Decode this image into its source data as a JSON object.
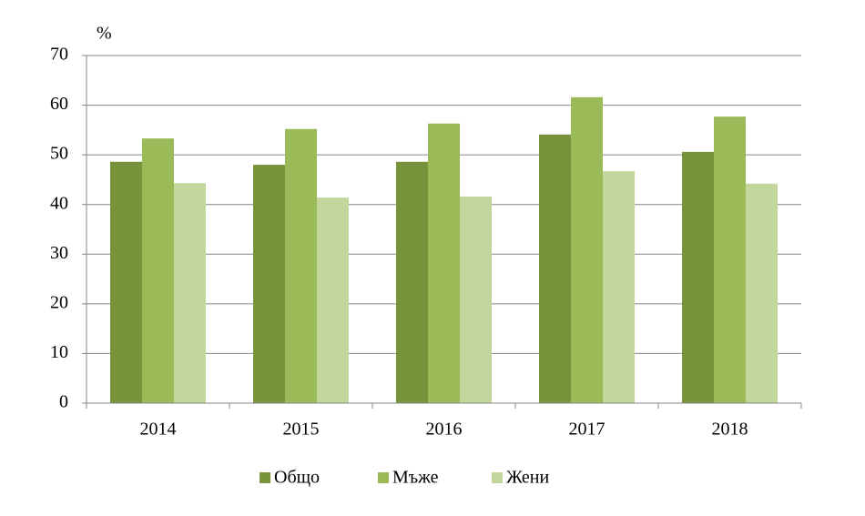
{
  "chart_data": {
    "type": "bar",
    "y_label": "%",
    "categories": [
      "2014",
      "2015",
      "2016",
      "2017",
      "2018"
    ],
    "series": [
      {
        "name": "Общо",
        "color": "#77933c",
        "values": [
          48.6,
          48.0,
          48.6,
          54.1,
          50.6
        ]
      },
      {
        "name": "Мъже",
        "color": "#9bbb59",
        "values": [
          53.3,
          55.2,
          56.3,
          61.6,
          57.7
        ]
      },
      {
        "name": "Жени",
        "color": "#c3d69b",
        "values": [
          44.3,
          41.4,
          41.6,
          46.7,
          44.2
        ]
      }
    ],
    "ylim": [
      0,
      70
    ],
    "yticks": [
      0,
      10,
      20,
      30,
      40,
      50,
      60,
      70
    ],
    "grid": true,
    "legend": "bottom"
  }
}
